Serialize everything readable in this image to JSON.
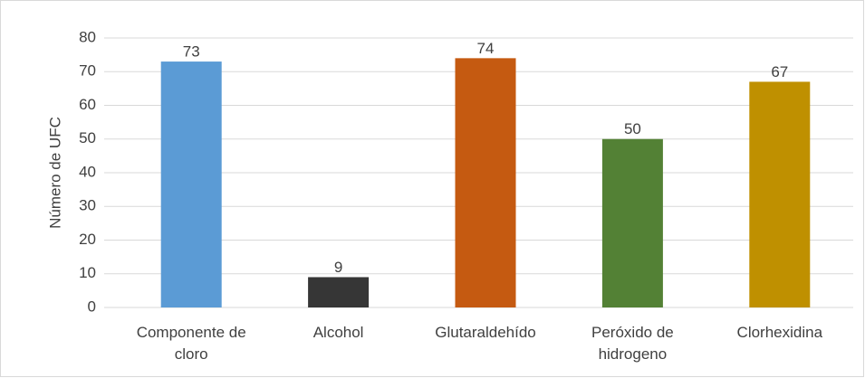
{
  "chart_data": {
    "type": "bar",
    "y_label": "Número de UFC",
    "categories": [
      "Componente de cloro",
      "Alcohol",
      "Glutaraldehído",
      "Peróxido de hidrogeno",
      "Clorhexidina"
    ],
    "values": [
      73,
      9,
      74,
      50,
      67
    ],
    "colors": [
      "#5b9bd5",
      "#363636",
      "#c55a11",
      "#538135",
      "#bf9000"
    ],
    "ylim": [
      0,
      80
    ],
    "yticks": [
      0,
      10,
      20,
      30,
      40,
      50,
      60,
      70,
      80
    ],
    "grid": true
  }
}
